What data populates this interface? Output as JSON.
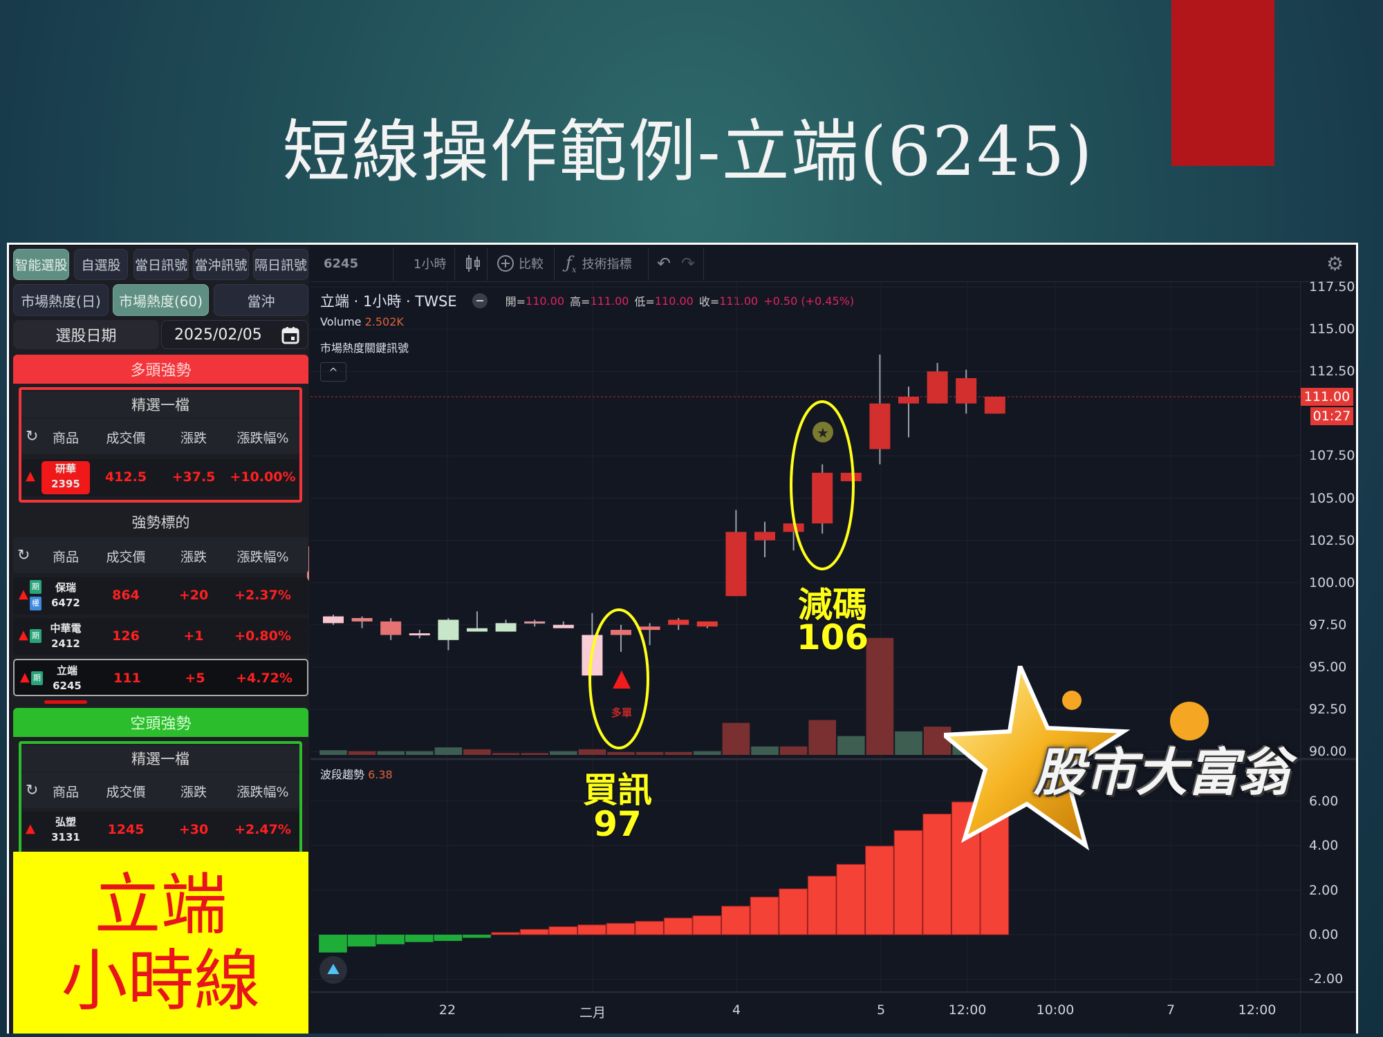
{
  "slide": {
    "title": "短線操作範例-立端(6245)",
    "accent_block_color": "#b3161a"
  },
  "panel": {
    "tabs": [
      {
        "label": "智能選股",
        "active": true
      },
      {
        "label": "自選股"
      },
      {
        "label": "當日訊號"
      },
      {
        "label": "當沖訊號"
      },
      {
        "label": "隔日訊號"
      }
    ],
    "subtabs": [
      {
        "label": "市場熱度(日)"
      },
      {
        "label": "市場熱度(60)",
        "active": true
      },
      {
        "label": "當沖"
      }
    ],
    "date_label": "選股日期",
    "date_value": "2025/02/05",
    "columns": [
      "商品",
      "成交價",
      "漲跌",
      "漲跌幅%"
    ],
    "bull": {
      "header": "多頭強勢",
      "pick_title": "精選一檔",
      "pick": {
        "name": "研華",
        "code": "2395",
        "price": "412.5",
        "change": "+37.5",
        "pct": "+10.00%"
      },
      "list_title": "強勢標的",
      "list": [
        {
          "name": "保瑞",
          "code": "6472",
          "price": "864",
          "change": "+20",
          "pct": "+2.37%",
          "badges": [
            "期",
            "權"
          ]
        },
        {
          "name": "中華電",
          "code": "2412",
          "price": "126",
          "change": "+1",
          "pct": "+0.80%",
          "badges": [
            "期"
          ]
        },
        {
          "name": "立端",
          "code": "6245",
          "price": "111",
          "change": "+5",
          "pct": "+4.72%",
          "badges": [
            "期"
          ],
          "selected": true
        }
      ]
    },
    "bear": {
      "header": "空頭強勢",
      "pick_title": "精選一檔",
      "pick": {
        "name": "弘塑",
        "code": "3131",
        "price": "1245",
        "change": "+30",
        "pct": "+2.47%"
      }
    },
    "note_line1": "立端",
    "note_line2": "小時線"
  },
  "toolbar": {
    "symbol": "6245",
    "interval": "1小時",
    "compare": "比較",
    "indicators": "技術指標"
  },
  "legend": {
    "title": "立端 · 1小時 · TWSE",
    "open_label": "開=",
    "open": "110.00",
    "high_label": "高=",
    "high": "111.00",
    "low_label": "低=",
    "low": "110.00",
    "close_label": "收=",
    "close": "111.00",
    "change": "+0.50 (+0.45%)",
    "volume_label": "Volume",
    "volume": "2.502K",
    "signal_label": "市場熱度關鍵訊號",
    "indicator_label": "波段趨勢",
    "indicator_value": "6.38"
  },
  "annotations": {
    "buy_text": "買訊",
    "buy_price": "97",
    "buy_marker": "多單",
    "reduce_text": "減碼",
    "reduce_price": "106"
  },
  "logo": {
    "text": "股市大富翁"
  },
  "chart_data": [
    {
      "type": "candlestick",
      "ylim": [
        88.9,
        118
      ],
      "yticks": [
        "117.50",
        "115.00",
        "112.50",
        "107.50",
        "105.00",
        "102.50",
        "100.00",
        "97.50",
        "95.00",
        "92.50",
        "90.00"
      ],
      "last_price": "111.00",
      "countdown": "01:27",
      "xticks": [
        "22",
        "二月",
        "4",
        "5",
        "12:00",
        "10:00",
        "7",
        "12:00"
      ],
      "candles": [
        {
          "o": 97.6,
          "h": 98.1,
          "l": 97.5,
          "c": 98.0,
          "color": "#f7c6cf"
        },
        {
          "o": 97.9,
          "h": 98.0,
          "l": 97.3,
          "c": 97.7,
          "color": "#e88080"
        },
        {
          "o": 97.7,
          "h": 97.9,
          "l": 96.6,
          "c": 96.9,
          "color": "#e57373"
        },
        {
          "o": 97.0,
          "h": 97.2,
          "l": 96.7,
          "c": 96.9,
          "color": "#f7c6cf"
        },
        {
          "o": 96.6,
          "h": 97.9,
          "l": 96.0,
          "c": 97.8,
          "color": "#c8e6c9"
        },
        {
          "o": 97.3,
          "h": 98.3,
          "l": 97.1,
          "c": 97.1,
          "color": "#c8e6c9"
        },
        {
          "o": 97.1,
          "h": 97.8,
          "l": 97.1,
          "c": 97.6,
          "color": "#c8e6c9"
        },
        {
          "o": 97.7,
          "h": 97.8,
          "l": 97.4,
          "c": 97.6,
          "color": "#d99aa0"
        },
        {
          "o": 97.5,
          "h": 97.7,
          "l": 97.4,
          "c": 97.3,
          "color": "#f7c6cf"
        },
        {
          "o": 94.5,
          "h": 98.2,
          "l": 94.5,
          "c": 96.9,
          "color": "#f9cdd5"
        },
        {
          "o": 96.9,
          "h": 97.5,
          "l": 95.9,
          "c": 97.2,
          "color": "#e57373"
        },
        {
          "o": 97.2,
          "h": 97.6,
          "l": 96.3,
          "c": 97.4,
          "color": "#ef6f6f"
        },
        {
          "o": 97.5,
          "h": 97.9,
          "l": 97.2,
          "c": 97.8,
          "color": "#e53935"
        },
        {
          "o": 97.4,
          "h": 97.7,
          "l": 97.3,
          "c": 97.7,
          "color": "#e53935"
        },
        {
          "o": 99.2,
          "h": 104.3,
          "l": 99.2,
          "c": 103.0,
          "color": "#d32f2f"
        },
        {
          "o": 102.5,
          "h": 103.6,
          "l": 101.5,
          "c": 103.0,
          "color": "#d32f2f"
        },
        {
          "o": 103.0,
          "h": 103.6,
          "l": 101.9,
          "c": 103.5,
          "color": "#d32f2f"
        },
        {
          "o": 103.5,
          "h": 107.0,
          "l": 102.9,
          "c": 106.5,
          "color": "#d32f2f"
        },
        {
          "o": 106.0,
          "h": 106.5,
          "l": 106.0,
          "c": 106.5,
          "color": "#d32f2f"
        },
        {
          "o": 107.9,
          "h": 113.5,
          "l": 107.0,
          "c": 110.6,
          "color": "#d32f2f"
        },
        {
          "o": 110.6,
          "h": 111.6,
          "l": 108.6,
          "c": 111.0,
          "color": "#d32f2f"
        },
        {
          "o": 110.6,
          "h": 113.0,
          "l": 110.6,
          "c": 112.5,
          "color": "#d32f2f"
        },
        {
          "o": 110.6,
          "h": 112.6,
          "l": 110.0,
          "c": 112.1,
          "color": "#d32f2f"
        },
        {
          "o": 110.0,
          "h": 111.0,
          "l": 110.0,
          "c": 111.0,
          "color": "#d32f2f"
        }
      ],
      "volume_unit": "K",
      "volume": [
        0.5,
        0.4,
        0.4,
        0.4,
        0.8,
        0.6,
        0.2,
        0.2,
        0.4,
        0.6,
        0.3,
        0.3,
        0.3,
        0.4,
        3.4,
        0.9,
        0.9,
        3.7,
        2.0,
        12.4,
        2.5,
        3.0,
        1.6,
        2.5
      ],
      "volume_up": [
        false,
        true,
        false,
        false,
        false,
        true,
        true,
        true,
        false,
        true,
        true,
        true,
        true,
        false,
        true,
        false,
        true,
        true,
        false,
        true,
        false,
        true,
        false,
        true
      ]
    },
    {
      "type": "bar",
      "name": "波段趨勢",
      "ylim": [
        -2.5,
        7
      ],
      "yticks": [
        "6.00",
        "4.00",
        "2.00",
        "0.00",
        "-2.00"
      ],
      "values": [
        -0.8,
        -0.53,
        -0.43,
        -0.33,
        -0.28,
        -0.14,
        0.1,
        0.24,
        0.36,
        0.44,
        0.51,
        0.6,
        0.75,
        0.85,
        1.28,
        1.69,
        2.06,
        2.63,
        3.16,
        3.98,
        4.68,
        5.42,
        5.96,
        6.38
      ],
      "up_color": "#f44336",
      "down_color": "#1fad3a"
    }
  ]
}
